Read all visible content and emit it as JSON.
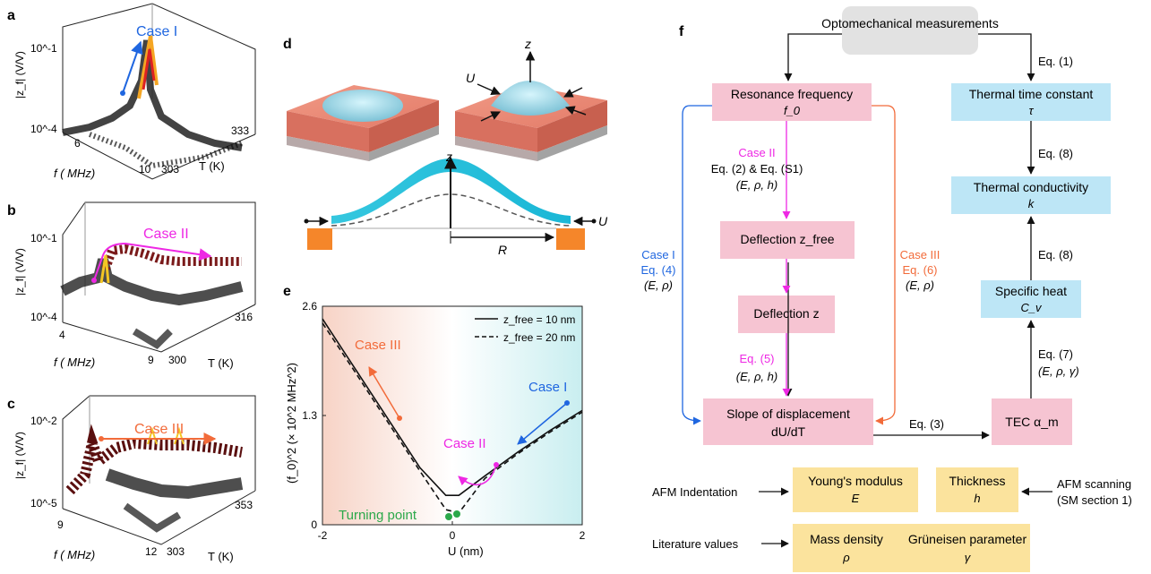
{
  "panel_labels": {
    "a": "a",
    "b": "b",
    "c": "c",
    "d": "d",
    "e": "e",
    "f": "f"
  },
  "panel_a": {
    "ylabel": "|z_f| (V/V)",
    "xlabel": "f  ( MHz)",
    "tlabel": "T (K)",
    "yticks": [
      "10^-1",
      "10^-4"
    ],
    "fticks": [
      "6",
      "10"
    ],
    "tticks": [
      "303",
      "333"
    ],
    "case": "Case I"
  },
  "panel_b": {
    "ylabel": "|z_f| (V/V)",
    "xlabel": "f  ( MHz)",
    "tlabel": "T (K)",
    "yticks": [
      "10^-1",
      "10^-4"
    ],
    "fticks": [
      "4",
      "9"
    ],
    "tticks": [
      "300",
      "316"
    ],
    "case": "Case II"
  },
  "panel_c": {
    "ylabel": "|z_f| (V/V)",
    "xlabel": "f  ( MHz)",
    "tlabel": "T (K)",
    "yticks": [
      "10^-2",
      "10^-5"
    ],
    "fticks": [
      "9",
      "12"
    ],
    "tticks": [
      "303",
      "353"
    ],
    "case": "Case III"
  },
  "panel_d": {
    "z": "z",
    "U": "U",
    "R": "R"
  },
  "chart_data": {
    "type": "line",
    "ylabel": "(f_0)^2 (× 10^2 MHz^2)",
    "xlabel": "U (nm)",
    "xlim": [
      -2,
      2
    ],
    "ylim": [
      0,
      2.6
    ],
    "xticks": [
      "-2",
      "0",
      "2"
    ],
    "yticks": [
      "0",
      "1.3",
      "2.6"
    ],
    "series": [
      {
        "name": "z_free = 10 nm",
        "style": "solid",
        "x": [
          -2,
          -1.5,
          -1,
          -0.5,
          -0.1,
          0.1,
          0.5,
          1,
          1.5,
          2
        ],
        "y": [
          2.45,
          1.86,
          1.27,
          0.68,
          0.35,
          0.35,
          0.58,
          0.86,
          1.12,
          1.36
        ]
      },
      {
        "name": "z_free = 20 nm",
        "style": "dashed",
        "x": [
          -2,
          -1.5,
          -1,
          -0.5,
          -0.1,
          0.1,
          0.5,
          1,
          1.5,
          2
        ],
        "y": [
          2.4,
          1.82,
          1.23,
          0.64,
          0.18,
          0.14,
          0.55,
          0.84,
          1.1,
          1.34
        ]
      }
    ],
    "legend": [
      "z_free = 10 nm",
      "z_free = 20 nm"
    ],
    "legend_position": "top-right",
    "annotations": [
      "Case III",
      "Case II",
      "Case I",
      "Turning point"
    ],
    "colors": {
      "case1": "#1f66e0",
      "case2": "#ee28e4",
      "case3": "#f26b3a",
      "turning": "#2ba84a"
    }
  },
  "flowchart": {
    "opto": "Optomechanical measurements",
    "resonance": "Resonance frequency",
    "f0": "f_0",
    "thermal_time": "Thermal time constant",
    "tau": "τ",
    "thermal_cond": "Thermal conductivity",
    "k": "k",
    "specific_heat": "Specific heat",
    "cv": "C_v",
    "deflection_free": "Deflection z_free",
    "deflection": "Deflection z",
    "slope": "Slope of displacement",
    "dudt": "dU/dT",
    "tec": "TEC α_m",
    "case2": "Case II",
    "case2_eq": "Eq. (2) & Eq. (S1)",
    "case2_params": "(E, ρ, h)",
    "case1": "Case I",
    "case1_eq": "Eq. (4)",
    "case1_params": "(E, ρ)",
    "case3": "Case III",
    "case3_eq": "Eq. (6)",
    "case3_params": "(E, ρ)",
    "eq5": "Eq. (5)",
    "eq5_params": "(E, ρ, h)",
    "eq1": "Eq. (1)",
    "eq8a": "Eq. (8)",
    "eq8b": "Eq. (8)",
    "eq7": "Eq. (7)",
    "eq7_params": "(E, ρ, γ)",
    "eq3": "Eq. (3)",
    "afm_ind": "AFM Indentation",
    "youngs": "Young's modulus",
    "E": "E",
    "thickness": "Thickness",
    "h": "h",
    "afm_scan": "AFM scanning",
    "sm": "(SM section 1)",
    "lit": "Literature values",
    "mass": "Mass density",
    "rho": "ρ",
    "gruneisen": "Grüneisen parameter",
    "gamma": "γ"
  }
}
